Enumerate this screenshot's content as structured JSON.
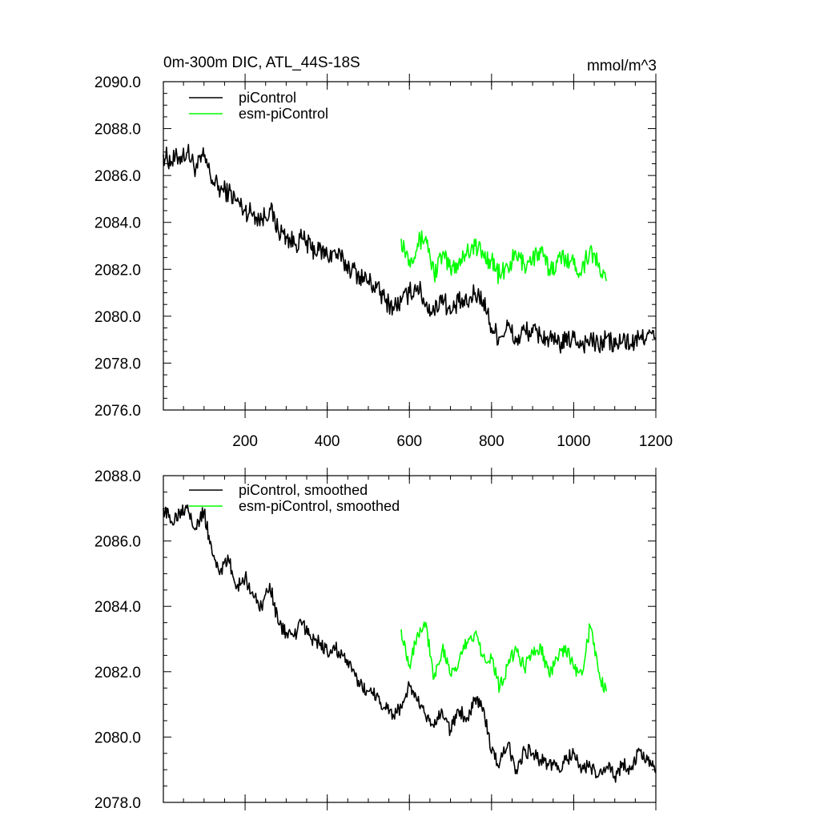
{
  "chart_data": [
    {
      "type": "line",
      "title": "0m-300m DIC, ATL_44S-18S",
      "units": "mmol/m^3",
      "xlim": [
        1,
        1200
      ],
      "ylim": [
        2076.0,
        2090.0
      ],
      "xticks": [
        200,
        400,
        600,
        800,
        1000,
        1200
      ],
      "xtick_labels": [
        "200",
        "400",
        "600",
        "800",
        "1000",
        "1200"
      ],
      "yticks": [
        2076,
        2078,
        2080,
        2082,
        2084,
        2086,
        2088,
        2090
      ],
      "ytick_labels": [
        "2076.0",
        "2078.0",
        "2080.0",
        "2082.0",
        "2084.0",
        "2086.0",
        "2088.0",
        "2090.0"
      ],
      "legend_position": "top-left",
      "series": [
        {
          "name": "piControl",
          "color": "#000000",
          "x": [
            1,
            20,
            40,
            60,
            80,
            100,
            120,
            140,
            160,
            180,
            200,
            220,
            240,
            260,
            280,
            300,
            320,
            340,
            360,
            380,
            400,
            420,
            440,
            460,
            480,
            500,
            520,
            540,
            560,
            580,
            600,
            620,
            640,
            660,
            680,
            700,
            720,
            740,
            760,
            780,
            800,
            820,
            840,
            860,
            880,
            900,
            920,
            940,
            960,
            980,
            1000,
            1020,
            1040,
            1060,
            1080,
            1100,
            1120,
            1140,
            1160,
            1180,
            1200
          ],
          "y": [
            2086.9,
            2086.6,
            2086.8,
            2087.0,
            2086.3,
            2086.8,
            2085.8,
            2085.4,
            2085.3,
            2084.9,
            2084.5,
            2084.4,
            2084.1,
            2084.6,
            2083.7,
            2083.4,
            2083.1,
            2083.3,
            2082.9,
            2082.8,
            2082.6,
            2082.7,
            2082.3,
            2082.0,
            2081.7,
            2081.5,
            2081.2,
            2080.7,
            2080.4,
            2080.6,
            2081.0,
            2081.3,
            2080.5,
            2080.2,
            2080.9,
            2080.1,
            2080.6,
            2080.5,
            2081.0,
            2080.7,
            2079.5,
            2079.1,
            2079.6,
            2078.9,
            2079.4,
            2079.3,
            2079.2,
            2079.0,
            2078.8,
            2078.9,
            2079.1,
            2078.8,
            2079.0,
            2078.7,
            2079.1,
            2078.7,
            2079.0,
            2078.8,
            2079.0,
            2079.3,
            2079.0
          ]
        },
        {
          "name": "esm-piControl",
          "color": "#00ff00",
          "x": [
            580,
            600,
            620,
            640,
            660,
            680,
            700,
            720,
            740,
            760,
            780,
            800,
            820,
            840,
            860,
            880,
            900,
            920,
            940,
            960,
            980,
            1000,
            1020,
            1040,
            1060,
            1080
          ],
          "y": [
            2083.3,
            2082.4,
            2083.1,
            2083.4,
            2081.8,
            2082.6,
            2082.0,
            2082.3,
            2082.8,
            2083.0,
            2082.6,
            2082.4,
            2081.7,
            2082.1,
            2082.6,
            2082.2,
            2082.5,
            2082.7,
            2082.0,
            2082.3,
            2082.6,
            2082.2,
            2082.0,
            2082.9,
            2082.1,
            2081.5
          ]
        }
      ]
    },
    {
      "type": "line",
      "xlim": [
        1,
        1200
      ],
      "ylim": [
        2078.0,
        2088.0
      ],
      "xticks": [
        200,
        400,
        600,
        800,
        1000,
        1200
      ],
      "yticks": [
        2078,
        2080,
        2082,
        2084,
        2086,
        2088
      ],
      "ytick_labels": [
        "2078.0",
        "2080.0",
        "2082.0",
        "2084.0",
        "2086.0",
        "2088.0"
      ],
      "legend_position": "top-left",
      "series": [
        {
          "name": "piControl, smoothed",
          "color": "#000000",
          "x": [
            1,
            20,
            40,
            60,
            80,
            100,
            120,
            140,
            160,
            180,
            200,
            220,
            240,
            260,
            280,
            300,
            320,
            340,
            360,
            380,
            400,
            420,
            440,
            460,
            480,
            500,
            520,
            540,
            560,
            580,
            600,
            620,
            640,
            660,
            680,
            700,
            720,
            740,
            760,
            780,
            800,
            820,
            840,
            860,
            880,
            900,
            920,
            940,
            960,
            980,
            1000,
            1020,
            1040,
            1060,
            1080,
            1100,
            1120,
            1140,
            1160,
            1180,
            1200
          ],
          "y": [
            2087.0,
            2086.6,
            2086.9,
            2087.1,
            2086.4,
            2086.9,
            2085.6,
            2085.1,
            2085.4,
            2084.6,
            2084.9,
            2084.3,
            2084.0,
            2084.7,
            2083.5,
            2083.2,
            2083.1,
            2083.5,
            2083.0,
            2082.9,
            2082.6,
            2082.7,
            2082.5,
            2082.0,
            2081.6,
            2081.4,
            2081.3,
            2080.9,
            2080.7,
            2080.9,
            2081.6,
            2081.1,
            2080.6,
            2080.3,
            2080.8,
            2080.2,
            2080.8,
            2080.6,
            2081.2,
            2080.9,
            2079.5,
            2079.2,
            2079.8,
            2079.0,
            2079.6,
            2079.5,
            2079.3,
            2079.2,
            2079.0,
            2079.3,
            2079.5,
            2079.0,
            2079.1,
            2078.8,
            2079.1,
            2078.8,
            2079.2,
            2079.0,
            2079.6,
            2079.3,
            2078.9
          ]
        },
        {
          "name": "esm-piControl, smoothed",
          "color": "#00ff00",
          "x": [
            580,
            600,
            620,
            640,
            660,
            680,
            700,
            720,
            740,
            760,
            780,
            800,
            820,
            840,
            860,
            880,
            900,
            920,
            940,
            960,
            980,
            1000,
            1020,
            1040,
            1060,
            1080
          ],
          "y": [
            2083.3,
            2082.2,
            2083.2,
            2083.5,
            2081.8,
            2082.7,
            2081.9,
            2082.3,
            2082.9,
            2083.2,
            2082.5,
            2082.4,
            2081.5,
            2082.2,
            2082.7,
            2082.1,
            2082.6,
            2082.8,
            2081.9,
            2082.4,
            2082.8,
            2082.1,
            2081.9,
            2083.4,
            2082.0,
            2081.4
          ]
        }
      ]
    }
  ]
}
